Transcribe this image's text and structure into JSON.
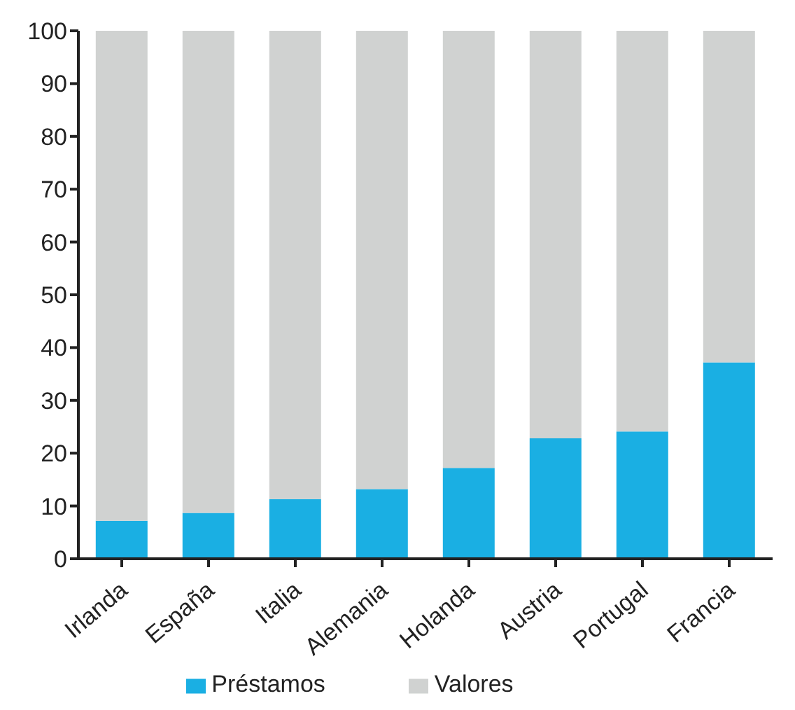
{
  "chart_data": {
    "type": "bar",
    "stacked": true,
    "categories": [
      "Irlanda",
      "España",
      "Italia",
      "Alemania",
      "Holanda",
      "Austria",
      "Portugal",
      "Francia"
    ],
    "series": [
      {
        "name": "Préstamos",
        "color": "#1aafe3",
        "values": [
          7.2,
          8.7,
          11.3,
          13.2,
          17.2,
          22.8,
          24.1,
          37.2
        ]
      },
      {
        "name": "Valores",
        "color": "#d0d2d1",
        "values": [
          92.8,
          91.3,
          88.7,
          86.8,
          82.8,
          77.2,
          75.9,
          62.8
        ]
      }
    ],
    "ylim": [
      0,
      100
    ],
    "yticks": [
      0,
      10,
      20,
      30,
      40,
      50,
      60,
      70,
      80,
      90,
      100
    ],
    "grid": false,
    "legend": "bottom"
  }
}
